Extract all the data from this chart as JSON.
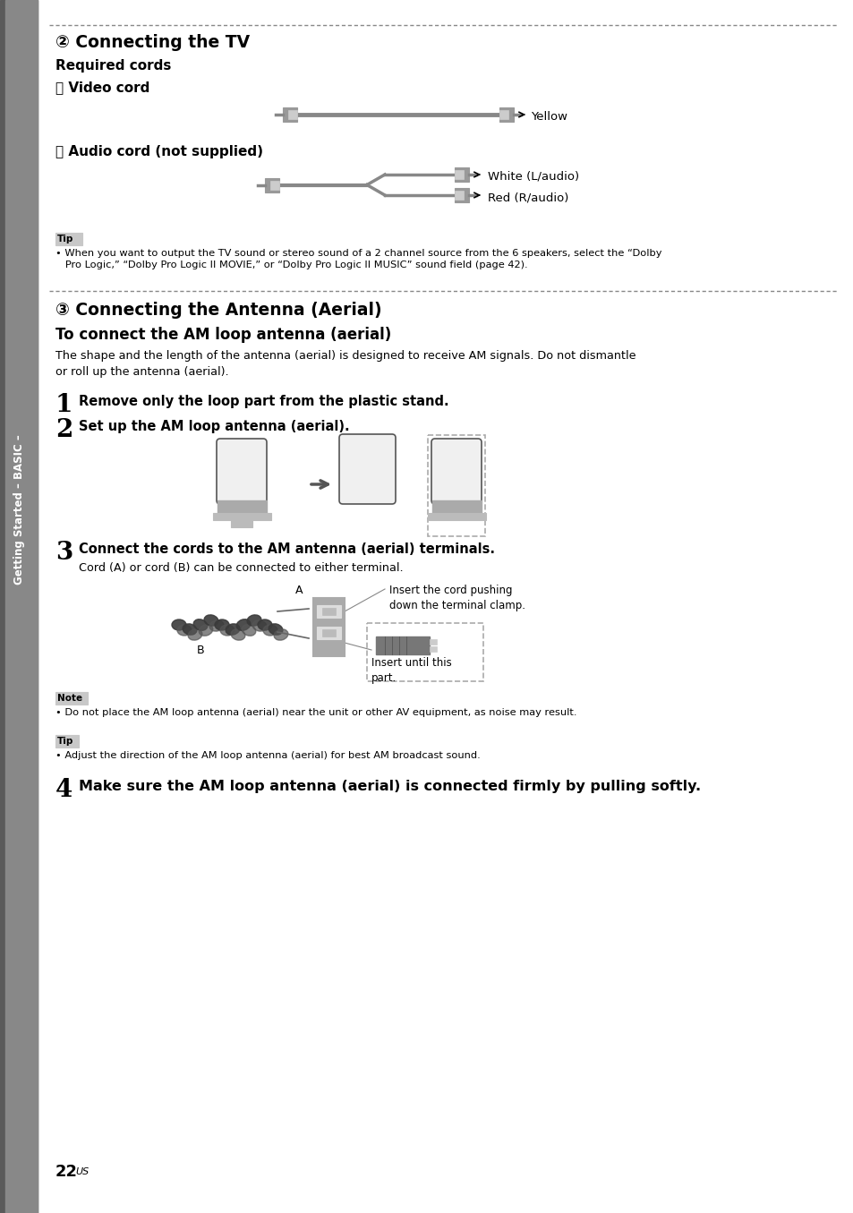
{
  "bg_color": "#ffffff",
  "sidebar_text": "Getting Started – BASIC –",
  "section2_title": "② Connecting the TV",
  "required_cords": "Required cords",
  "A_label": "Ⓐ Video cord",
  "yellow_label": "Yellow",
  "B_label": "Ⓑ Audio cord (not supplied)",
  "white_label": "White (L/audio)",
  "red_label": "Red (R/audio)",
  "tip_label": "Tip",
  "tip_text": "• When you want to output the TV sound or stereo sound of a 2 channel source from the 6 speakers, select the “Dolby\n   Pro Logic,” “Dolby Pro Logic II MOVIE,” or “Dolby Pro Logic II MUSIC” sound field (page 42).",
  "section3_title": "③ Connecting the Antenna (Aerial)",
  "subsection3_title": "To connect the AM loop antenna (aerial)",
  "body_text1": "The shape and the length of the antenna (aerial) is designed to receive AM signals. Do not dismantle\nor roll up the antenna (aerial).",
  "step1_num": "1",
  "step1_text": "Remove only the loop part from the plastic stand.",
  "step2_num": "2",
  "step2_text": "Set up the AM loop antenna (aerial).",
  "step3_num": "3",
  "step3_text": "Connect the cords to the AM antenna (aerial) terminals.",
  "step3_sub": "Cord (A) or cord (B) can be connected to either terminal.",
  "insert_label1": "Insert the cord pushing\ndown the terminal clamp.",
  "insert_label2": "Insert until this\npart.",
  "note_label": "Note",
  "note_text": "• Do not place the AM loop antenna (aerial) near the unit or other AV equipment, as noise may result.",
  "tip2_label": "Tip",
  "tip2_text": "• Adjust the direction of the AM loop antenna (aerial) for best AM broadcast sound.",
  "step4_num": "4",
  "step4_text": "Make sure the AM loop antenna (aerial) is connected firmly by pulling softly.",
  "page_num": "22",
  "page_suffix": "US"
}
